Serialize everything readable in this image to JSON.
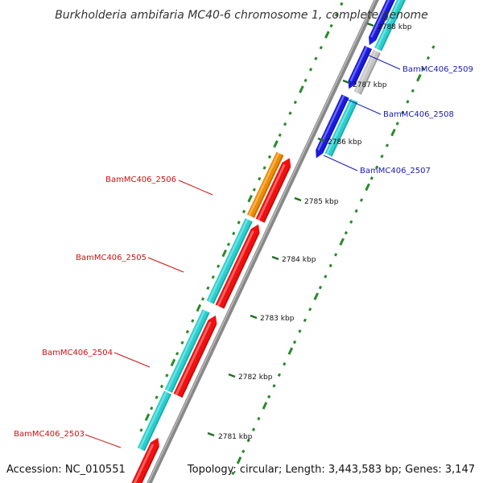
{
  "title": "Burkholderia ambifaria MC40-6 chromosome 1, complete genome",
  "accession": "Accession: NC_010551",
  "summary": "Topology: circular; Length: 3,443,583 bp; Genes: 3,147",
  "colors": {
    "backbone": "#888888",
    "tick_dots": "#2a8a2a",
    "plus_label": "#1a1ab8",
    "minus_label": "#cc1111",
    "cds": "#2ad0d0",
    "blue": "#1a1ae0",
    "red": "#f01010",
    "orange": "#f08c00",
    "gray": "#c4c4c4"
  },
  "ticks": [
    "2781 kbp",
    "2782 kbp",
    "2783 kbp",
    "2784 kbp",
    "2785 kbp",
    "2786 kbp",
    "2787 kbp",
    "2788 kbp"
  ],
  "gene_labels": {
    "plus": [
      "BamMC406_2509",
      "BamMC406_2508",
      "BamMC406_2507"
    ],
    "minus": [
      "BamMC406_2506",
      "BamMC406_2505",
      "BamMC406_2504",
      "BamMC406_2503"
    ]
  }
}
